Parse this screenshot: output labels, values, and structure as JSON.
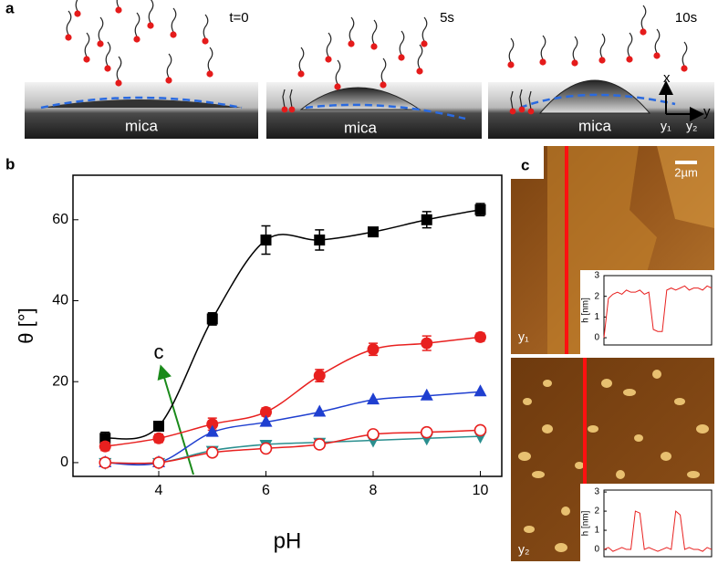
{
  "panel_labels": [
    "a",
    "b",
    "c"
  ],
  "panel_a": {
    "times": [
      "t=0",
      "5s",
      "10s"
    ],
    "substrate": [
      "mica",
      "mica",
      "mica"
    ],
    "axis_x": "x",
    "axis_y": "y",
    "positions": [
      "y₁",
      "y₂"
    ]
  },
  "panel_c": {
    "scale_bar": "2µm",
    "positions": [
      "y₁",
      "y₂"
    ]
  },
  "chart_data": [
    {
      "type": "line",
      "xlabel": "pH",
      "ylabel": "θ [°]",
      "annotation": "c",
      "xlim": [
        2.4,
        10.4
      ],
      "ylim": [
        -3.4,
        71
      ],
      "xticks": [
        4,
        6,
        8,
        10
      ],
      "yticks": [
        0,
        20,
        40,
        60
      ],
      "x": [
        3,
        4,
        5,
        6,
        7,
        8,
        9,
        10
      ],
      "series": [
        {
          "color": "#000000",
          "marker": "square",
          "values": [
            6,
            9,
            35.5,
            55,
            55,
            57,
            60,
            62.5
          ],
          "errors": [
            1.5,
            1,
            1.5,
            3.5,
            2.5,
            1,
            2,
            1.5
          ]
        },
        {
          "color": "#e8201f",
          "marker": "circle",
          "values": [
            4,
            6,
            9.5,
            12.5,
            21.5,
            28,
            29.5,
            31
          ],
          "errors": [
            1,
            1,
            1.5,
            1,
            1.5,
            1.5,
            1.8,
            1
          ]
        },
        {
          "color": "#1f3fd0",
          "marker": "triangle-up",
          "values": [
            0,
            0,
            7.5,
            10,
            12.5,
            15.5,
            16.5,
            17.5
          ]
        },
        {
          "color": "#2a8f8f",
          "marker": "triangle-down",
          "values": [
            0,
            0,
            3,
            4.5,
            5,
            5.5,
            6,
            6.5
          ]
        },
        {
          "color": "#e8201f",
          "marker": "open-circle",
          "values": [
            0,
            0,
            2.5,
            3.5,
            4.5,
            7,
            7.5,
            8
          ]
        }
      ]
    },
    {
      "type": "line",
      "ylabel": "h [nm]",
      "xlim": [
        0,
        24
      ],
      "ylim": [
        -0.35,
        3
      ],
      "yticks": [
        0,
        1,
        2,
        3
      ],
      "x": [
        0,
        1,
        2,
        3,
        4,
        5,
        6,
        7,
        8,
        9,
        10,
        11,
        12,
        13,
        14,
        15,
        16,
        17,
        18,
        19,
        20,
        21,
        22,
        23,
        24
      ],
      "series": [
        {
          "color": "#e8201f",
          "values": [
            0,
            1.9,
            2.1,
            2.2,
            2.1,
            2.3,
            2.2,
            2.2,
            2.3,
            2.1,
            2.2,
            0.4,
            0.3,
            0.3,
            2.3,
            2.4,
            2.3,
            2.4,
            2.5,
            2.3,
            2.4,
            2.4,
            2.3,
            2.5,
            2.4
          ]
        }
      ]
    },
    {
      "type": "line",
      "ylabel": "h [nm]",
      "xlim": [
        0,
        24
      ],
      "ylim": [
        -0.38,
        3.1
      ],
      "yticks": [
        0,
        1,
        2,
        3
      ],
      "x": [
        0,
        1,
        2,
        3,
        4,
        5,
        6,
        7,
        8,
        9,
        10,
        11,
        12,
        13,
        14,
        15,
        16,
        17,
        18,
        19,
        20,
        21,
        22,
        23,
        24
      ],
      "series": [
        {
          "color": "#e8201f",
          "values": [
            0,
            0.1,
            -0.1,
            0,
            0.1,
            0,
            0,
            2,
            1.9,
            0,
            0.1,
            0,
            -0.1,
            0,
            0.1,
            0,
            2,
            1.8,
            0,
            0.1,
            0,
            0,
            -0.1,
            0.1,
            0
          ]
        }
      ]
    }
  ]
}
